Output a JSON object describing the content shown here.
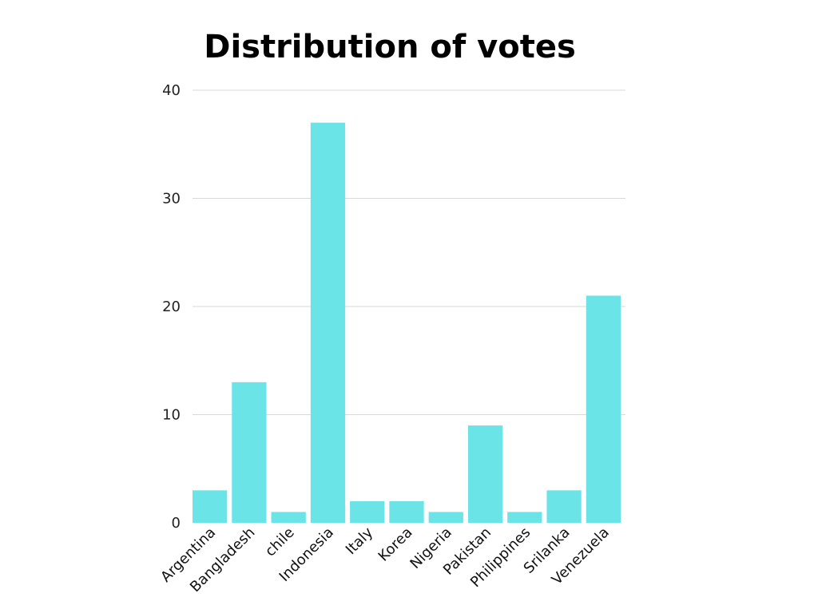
{
  "chart_data": {
    "type": "bar",
    "title": "Distribution of votes",
    "xlabel": "",
    "ylabel": "",
    "categories": [
      "Argentina",
      "Bangladesh",
      "chile",
      "Indonesia",
      "Italy",
      "Korea",
      "Nigeria",
      "Pakistan",
      "Philippines",
      "Srilanka",
      "Venezuela"
    ],
    "values": [
      3,
      13,
      1,
      37,
      2,
      2,
      1,
      9,
      1,
      3,
      21
    ],
    "ylim": [
      0,
      40
    ],
    "yticks": [
      0,
      10,
      20,
      30,
      40
    ],
    "grid": true,
    "legend": "none",
    "bar_color": "#6be4e8",
    "grid_color": "#d9d9d9"
  }
}
